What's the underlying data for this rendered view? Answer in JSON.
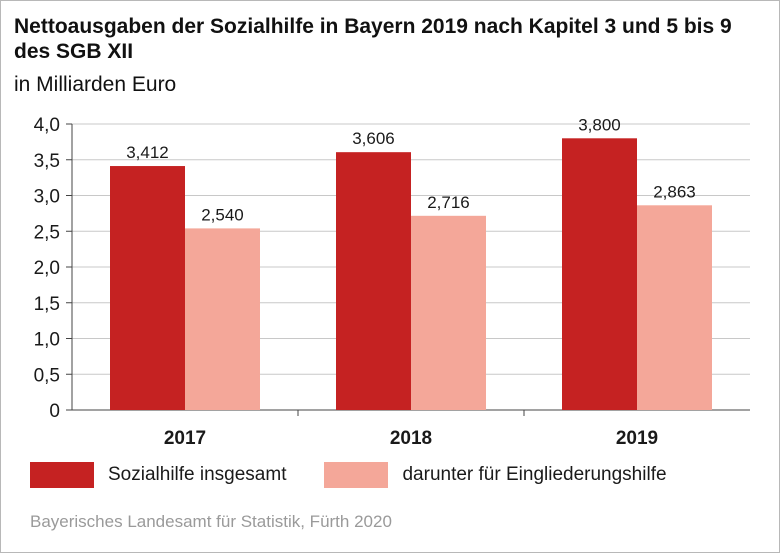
{
  "title": "Nettoausgaben der Sozialhilfe in Bayern 2019 nach Kapitel 3 und 5 bis 9 des SGB XII",
  "subtitle": "in Milliarden Euro",
  "source": "Bayerisches Landesamt für Statistik, Fürth 2020",
  "colors": {
    "series1": "#c52222",
    "series2": "#f4a799",
    "grid": "#c8c8c8",
    "axis": "#444444"
  },
  "chart_data": {
    "type": "bar",
    "categories": [
      "2017",
      "2018",
      "2019"
    ],
    "series": [
      {
        "name": "Sozialhilfe insgesamt",
        "values": [
          3.412,
          3.606,
          3.8
        ],
        "labels": [
          "3,412",
          "3,606",
          "3,800"
        ]
      },
      {
        "name": "darunter für Eingliederungshilfe",
        "values": [
          2.54,
          2.716,
          2.863
        ],
        "labels": [
          "2,540",
          "2,716",
          "2,863"
        ]
      }
    ],
    "ylim": [
      0,
      4
    ],
    "yticks": [
      0,
      0.5,
      1,
      1.5,
      2,
      2.5,
      3,
      3.5,
      4
    ],
    "ytick_labels": [
      "0",
      "0,5",
      "1,0",
      "1,5",
      "2,0",
      "2,5",
      "3,0",
      "3,5",
      "4,0"
    ],
    "grid": true,
    "legend_position": "bottom-left"
  }
}
